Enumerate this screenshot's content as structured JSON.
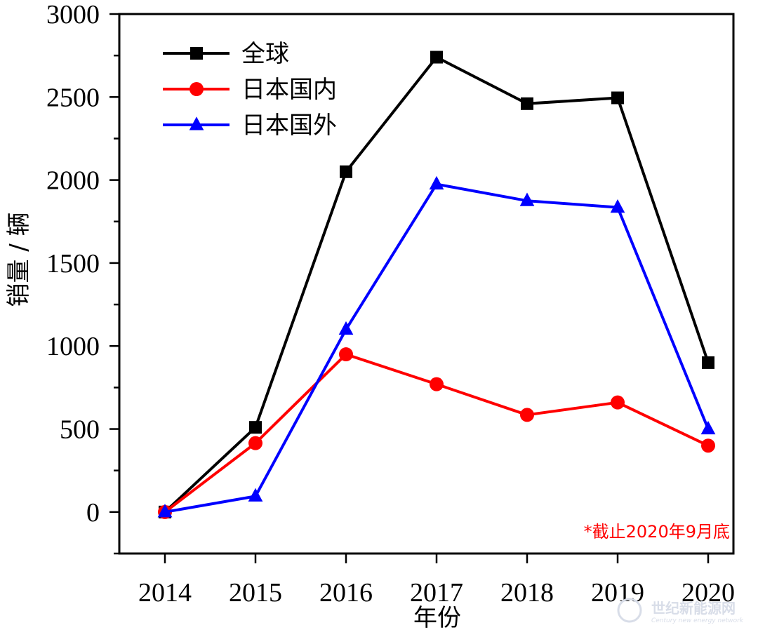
{
  "chart_data": {
    "type": "line",
    "title": "",
    "xlabel": "年份",
    "ylabel": "销量 / 辆",
    "categories": [
      "2014",
      "2015",
      "2016",
      "2017",
      "2018",
      "2019",
      "2020"
    ],
    "ylim": [
      -250,
      3000
    ],
    "yticks": [
      "0",
      "500",
      "1000",
      "1500",
      "2000",
      "2500",
      "3000"
    ],
    "grid": false,
    "legend_position": "top-left",
    "series": [
      {
        "name": "全球",
        "color": "#000000",
        "marker": "square",
        "values": [
          0,
          510,
          2050,
          2740,
          2460,
          2495,
          900
        ]
      },
      {
        "name": "日本国内",
        "color": "#ff0000",
        "marker": "circle",
        "values": [
          0,
          415,
          950,
          770,
          585,
          660,
          400
        ]
      },
      {
        "name": "日本国外",
        "color": "#0000ff",
        "marker": "triangle",
        "values": [
          0,
          95,
          1100,
          1975,
          1875,
          1835,
          500
        ]
      }
    ],
    "note": "*截止2020年9月底",
    "note_color": "#ff0000"
  },
  "watermark": {
    "name": "世纪新能源网",
    "sub": "Century new energy network"
  }
}
